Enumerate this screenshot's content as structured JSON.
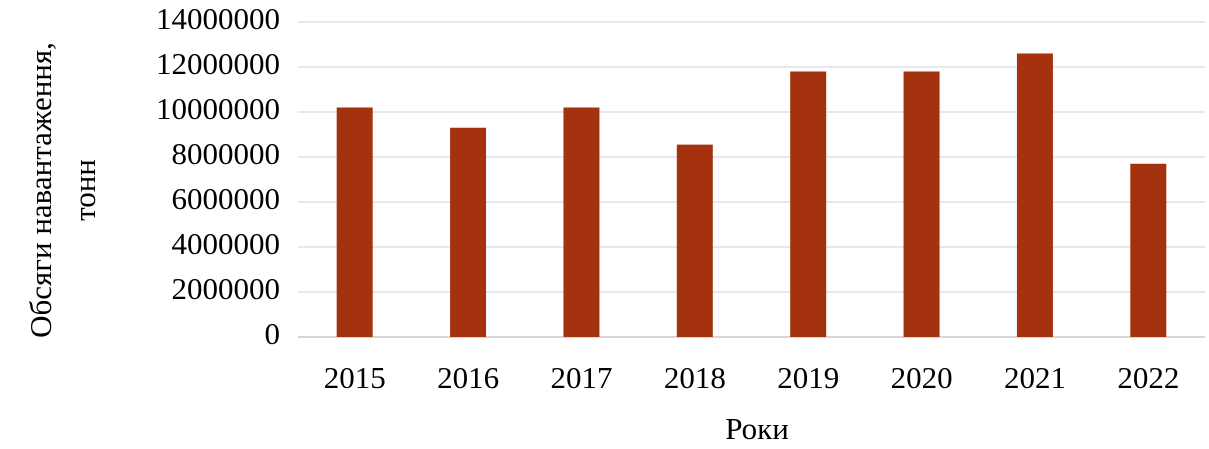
{
  "chart_data": {
    "type": "bar",
    "x_label": "Роки",
    "y_label": "Обсяги навантаження, тонн",
    "categories": [
      "2015",
      "2016",
      "2017",
      "2018",
      "2019",
      "2020",
      "2021",
      "2022"
    ],
    "values": [
      10200000,
      9300000,
      10200000,
      8550000,
      11800000,
      11800000,
      12600000,
      7700000
    ],
    "color": "#a5320f",
    "ylim": [
      0,
      14000000
    ],
    "yticks": [
      0,
      2000000,
      4000000,
      6000000,
      8000000,
      10000000,
      12000000,
      14000000
    ],
    "grid": true
  }
}
